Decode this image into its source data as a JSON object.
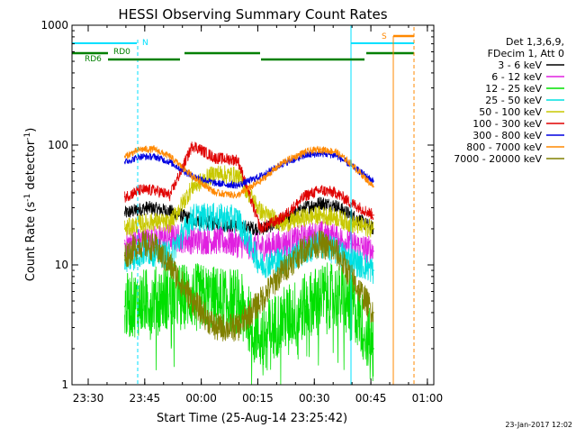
{
  "chart_data": {
    "type": "line",
    "title": "HESSI Observing Summary Count Rates",
    "xlabel": "Start Time (25-Aug-14 23:25:42)",
    "ylabel": "Count Rate (s",
    "ylabel_sup1": "-1",
    "ylabel_mid": " detector",
    "ylabel_sup2": "-1",
    "ylabel_end": ")",
    "yscale": "log",
    "ylim": [
      1,
      1000
    ],
    "xlim_minutes": [
      0,
      96
    ],
    "x_ticks": [
      {
        "label": "23:30",
        "minutes": 4.3
      },
      {
        "label": "23:45",
        "minutes": 19.3
      },
      {
        "label": "00:00",
        "minutes": 34.3
      },
      {
        "label": "00:15",
        "minutes": 49.3
      },
      {
        "label": "00:30",
        "minutes": 64.3
      },
      {
        "label": "00:45",
        "minutes": 79.3
      },
      {
        "label": "01:00",
        "minutes": 94.3
      }
    ],
    "y_ticks": [
      {
        "label": "1",
        "value": 1
      },
      {
        "label": "10",
        "value": 10
      },
      {
        "label": "100",
        "value": 100
      },
      {
        "label": "1000",
        "value": 1000
      }
    ],
    "legend_header": [
      "Det 1,3,6,9,",
      "FDecim 1, Att 0"
    ],
    "series": [
      {
        "name": "3 - 6 keV",
        "color": "#000000",
        "points": [
          [
            14,
            27
          ],
          [
            20,
            30
          ],
          [
            26,
            28
          ],
          [
            32,
            24
          ],
          [
            38,
            22
          ],
          [
            44,
            21
          ],
          [
            50,
            20
          ],
          [
            56,
            23
          ],
          [
            62,
            30
          ],
          [
            66,
            33
          ],
          [
            70,
            31
          ],
          [
            74,
            26
          ],
          [
            80,
            20
          ]
        ]
      },
      {
        "name": "6 - 12 keV",
        "color": "#e020e0",
        "points": [
          [
            14,
            15
          ],
          [
            20,
            16
          ],
          [
            26,
            17
          ],
          [
            32,
            16
          ],
          [
            38,
            16
          ],
          [
            44,
            15
          ],
          [
            50,
            14
          ],
          [
            56,
            15
          ],
          [
            62,
            17
          ],
          [
            66,
            18
          ],
          [
            70,
            17
          ],
          [
            74,
            15
          ],
          [
            80,
            13
          ]
        ]
      },
      {
        "name": "12 - 25 keV",
        "color": "#00e000",
        "points": [
          [
            14,
            4.5
          ],
          [
            20,
            5.0
          ],
          [
            26,
            5.5
          ],
          [
            32,
            5.5
          ],
          [
            38,
            5.2
          ],
          [
            44,
            5.0
          ],
          [
            50,
            2.5
          ],
          [
            56,
            3.5
          ],
          [
            62,
            4.5
          ],
          [
            66,
            5.5
          ],
          [
            70,
            5.5
          ],
          [
            74,
            5.0
          ],
          [
            80,
            2.0
          ]
        ]
      },
      {
        "name": "25 - 50 keV",
        "color": "#00e0e0",
        "points": [
          [
            14,
            11
          ],
          [
            20,
            13
          ],
          [
            26,
            12
          ],
          [
            32,
            25
          ],
          [
            38,
            25
          ],
          [
            44,
            24
          ],
          [
            50,
            10
          ],
          [
            56,
            11
          ],
          [
            62,
            13
          ],
          [
            66,
            15
          ],
          [
            70,
            13
          ],
          [
            74,
            11
          ],
          [
            80,
            9
          ]
        ]
      },
      {
        "name": "50 - 100 keV",
        "color": "#c8c800",
        "points": [
          [
            14,
            20
          ],
          [
            18,
            22
          ],
          [
            22,
            23
          ],
          [
            26,
            22
          ],
          [
            32,
            45
          ],
          [
            38,
            58
          ],
          [
            44,
            55
          ],
          [
            50,
            28
          ],
          [
            56,
            22
          ],
          [
            62,
            25
          ],
          [
            66,
            26
          ],
          [
            70,
            25
          ],
          [
            74,
            22
          ],
          [
            80,
            20
          ]
        ]
      },
      {
        "name": "100 - 300 keV",
        "color": "#e00000",
        "points": [
          [
            14,
            37
          ],
          [
            18,
            42
          ],
          [
            22,
            42
          ],
          [
            26,
            38
          ],
          [
            32,
            100
          ],
          [
            38,
            78
          ],
          [
            44,
            75
          ],
          [
            50,
            20
          ],
          [
            56,
            25
          ],
          [
            62,
            38
          ],
          [
            66,
            42
          ],
          [
            70,
            40
          ],
          [
            74,
            33
          ],
          [
            80,
            26
          ]
        ]
      },
      {
        "name": "300 - 800 keV",
        "color": "#0000e0",
        "points": [
          [
            14,
            72
          ],
          [
            18,
            80
          ],
          [
            22,
            80
          ],
          [
            26,
            72
          ],
          [
            32,
            55
          ],
          [
            38,
            48
          ],
          [
            44,
            46
          ],
          [
            50,
            55
          ],
          [
            56,
            70
          ],
          [
            62,
            82
          ],
          [
            66,
            85
          ],
          [
            70,
            82
          ],
          [
            74,
            68
          ],
          [
            80,
            50
          ]
        ]
      },
      {
        "name": "800 - 7000 keV",
        "color": "#ff8800",
        "points": [
          [
            14,
            80
          ],
          [
            18,
            92
          ],
          [
            22,
            92
          ],
          [
            26,
            80
          ],
          [
            32,
            55
          ],
          [
            38,
            40
          ],
          [
            44,
            38
          ],
          [
            50,
            50
          ],
          [
            56,
            72
          ],
          [
            62,
            88
          ],
          [
            66,
            92
          ],
          [
            70,
            88
          ],
          [
            74,
            70
          ],
          [
            80,
            45
          ]
        ]
      },
      {
        "name": "7000 - 20000 keV",
        "color": "#808000",
        "points": [
          [
            14,
            12
          ],
          [
            18,
            15
          ],
          [
            22,
            14
          ],
          [
            26,
            10
          ],
          [
            32,
            5
          ],
          [
            38,
            3
          ],
          [
            44,
            3
          ],
          [
            50,
            5
          ],
          [
            56,
            9
          ],
          [
            62,
            14
          ],
          [
            66,
            15
          ],
          [
            70,
            13
          ],
          [
            74,
            8
          ],
          [
            80,
            4
          ]
        ]
      }
    ],
    "flag_labels": {
      "n": "N",
      "rd0": "RD0",
      "rd6": "RD6",
      "s": "S"
    },
    "flag_colors": {
      "saa_night": "#00e0ff",
      "decimation": "#008000",
      "sun_flag": "#ff8800"
    },
    "timestamp": "23-Jan-2017 12:02"
  }
}
